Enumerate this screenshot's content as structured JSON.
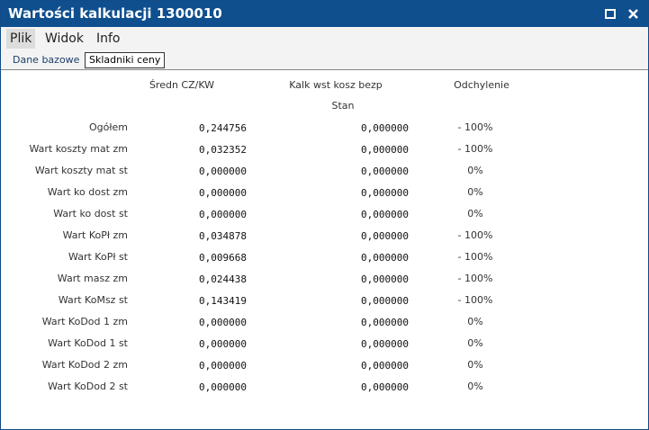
{
  "window": {
    "title": "Wartości kalkulacji 1300010"
  },
  "menu": [
    "Plik",
    "Widok",
    "Info"
  ],
  "tabs": [
    "Dane bazowe",
    "Skladniki ceny"
  ],
  "table": {
    "headers": [
      "Średn CZ/KW",
      "Kalk wst kosz bezp",
      "Odchylenie"
    ],
    "subheader": "Stan",
    "rows": [
      [
        "Ogółem",
        "0,244756",
        "0,000000",
        "- 100%"
      ],
      [
        "Wart koszty mat zm",
        "0,032352",
        "0,000000",
        "- 100%"
      ],
      [
        "Wart koszty mat st",
        "0,000000",
        "0,000000",
        "0%"
      ],
      [
        "Wart ko dost zm",
        "0,000000",
        "0,000000",
        "0%"
      ],
      [
        "Wart ko dost st",
        "0,000000",
        "0,000000",
        "0%"
      ],
      [
        "Wart KoPł zm",
        "0,034878",
        "0,000000",
        "- 100%"
      ],
      [
        "Wart KoPł st",
        "0,009668",
        "0,000000",
        "- 100%"
      ],
      [
        "Wart masz zm",
        "0,024438",
        "0,000000",
        "- 100%"
      ],
      [
        "Wart KoMsz st",
        "0,143419",
        "0,000000",
        "- 100%"
      ],
      [
        "Wart KoDod 1 zm",
        "0,000000",
        "0,000000",
        "0%"
      ],
      [
        "Wart KoDod 1 st",
        "0,000000",
        "0,000000",
        "0%"
      ],
      [
        "Wart KoDod 2 zm",
        "0,000000",
        "0,000000",
        "0%"
      ],
      [
        "Wart KoDod 2 st",
        "0,000000",
        "0,000000",
        "0%"
      ]
    ]
  }
}
